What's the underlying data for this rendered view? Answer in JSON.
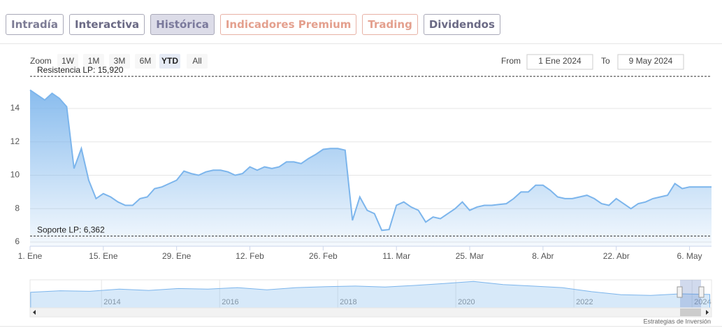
{
  "tabs": [
    "Intradía",
    "Interactiva",
    "Histórica",
    "Indicadores Premium",
    "Trading",
    "Dividendos"
  ],
  "active_tab": 2,
  "zoom": {
    "label": "Zoom",
    "buttons": [
      "1W",
      "1M",
      "3M",
      "6M",
      "YTD",
      "All"
    ],
    "active": 4
  },
  "range": {
    "from_label": "From",
    "from": "1 Ene 2024",
    "to_label": "To",
    "to": "9 May 2024"
  },
  "credit": "Estrategias de Inversión",
  "chart_data": {
    "type": "area",
    "color": "#7cb5ec",
    "categories": [
      "1. Ene",
      null,
      null,
      null,
      null,
      null,
      null,
      null,
      null,
      null,
      "15. Ene",
      null,
      null,
      null,
      null,
      null,
      null,
      null,
      null,
      null,
      "29. Ene",
      null,
      null,
      null,
      null,
      null,
      null,
      null,
      null,
      null,
      "12. Feb",
      null,
      null,
      null,
      null,
      null,
      null,
      null,
      null,
      null,
      "26. Feb",
      null,
      null,
      null,
      null,
      null,
      null,
      null,
      null,
      null,
      "11. Mar",
      null,
      null,
      null,
      null,
      null,
      null,
      null,
      null,
      null,
      "25. Mar",
      null,
      null,
      null,
      null,
      null,
      null,
      null,
      null,
      null,
      "8. Abr",
      null,
      null,
      null,
      null,
      null,
      null,
      null,
      null,
      null,
      "22. Abr",
      null,
      null,
      null,
      null,
      null,
      null,
      null,
      null,
      null,
      "6. May",
      null,
      null,
      null
    ],
    "values": [
      15.1,
      14.8,
      14.5,
      14.9,
      14.6,
      14.1,
      10.4,
      11.6,
      9.7,
      8.6,
      8.9,
      8.7,
      8.4,
      8.2,
      8.2,
      8.6,
      8.7,
      9.2,
      9.3,
      9.5,
      9.7,
      10.25,
      10.1,
      10.0,
      10.2,
      10.3,
      10.3,
      10.2,
      10.0,
      10.1,
      10.5,
      10.3,
      10.5,
      10.4,
      10.5,
      10.8,
      10.8,
      10.7,
      11.0,
      11.25,
      11.55,
      11.6,
      11.6,
      11.5,
      7.3,
      8.7,
      7.9,
      7.7,
      6.7,
      6.75,
      8.2,
      8.4,
      8.1,
      7.9,
      7.2,
      7.5,
      7.4,
      7.7,
      8.0,
      8.4,
      7.9,
      8.1,
      8.2,
      8.2,
      8.25,
      8.3,
      8.6,
      9.0,
      9.0,
      9.4,
      9.4,
      9.1,
      8.7,
      8.6,
      8.6,
      8.7,
      8.8,
      8.6,
      8.3,
      8.2,
      8.6,
      8.3,
      8.0,
      8.3,
      8.4,
      8.6,
      8.7,
      8.8,
      9.5,
      9.2,
      9.3,
      9.3,
      9.3,
      9.3
    ],
    "ylim": [
      5.75,
      16.3
    ],
    "yticks": [
      6,
      8,
      10,
      12,
      14
    ],
    "grid": true,
    "levels": [
      {
        "label": "Resistencia LP: 15,920",
        "value": 15.92
      },
      {
        "label": "Soporte LP: 6,362",
        "value": 6.362
      }
    ],
    "navigator": {
      "x": [
        2012.8,
        2013.3,
        2013.8,
        2014.3,
        2014.8,
        2015.3,
        2015.8,
        2016.3,
        2016.8,
        2017.3,
        2017.8,
        2018.3,
        2018.8,
        2019.3,
        2019.8,
        2020.3,
        2020.8,
        2021.3,
        2021.8,
        2022.3,
        2022.8,
        2023.3,
        2023.8,
        2024.3
      ],
      "values": [
        10,
        10.5,
        10.3,
        11,
        10.6,
        11.2,
        11,
        11.5,
        10.8,
        11.5,
        11.8,
        12,
        11.7,
        12.2,
        12.8,
        13.5,
        12.5,
        12,
        11.5,
        10.2,
        9.2,
        9,
        9.5,
        9.3
      ],
      "xlim": [
        2012.79,
        2024.33
      ],
      "xticks": [
        2014,
        2016,
        2018,
        2020,
        2022,
        2024
      ],
      "ylim": [
        5,
        14
      ]
    }
  }
}
